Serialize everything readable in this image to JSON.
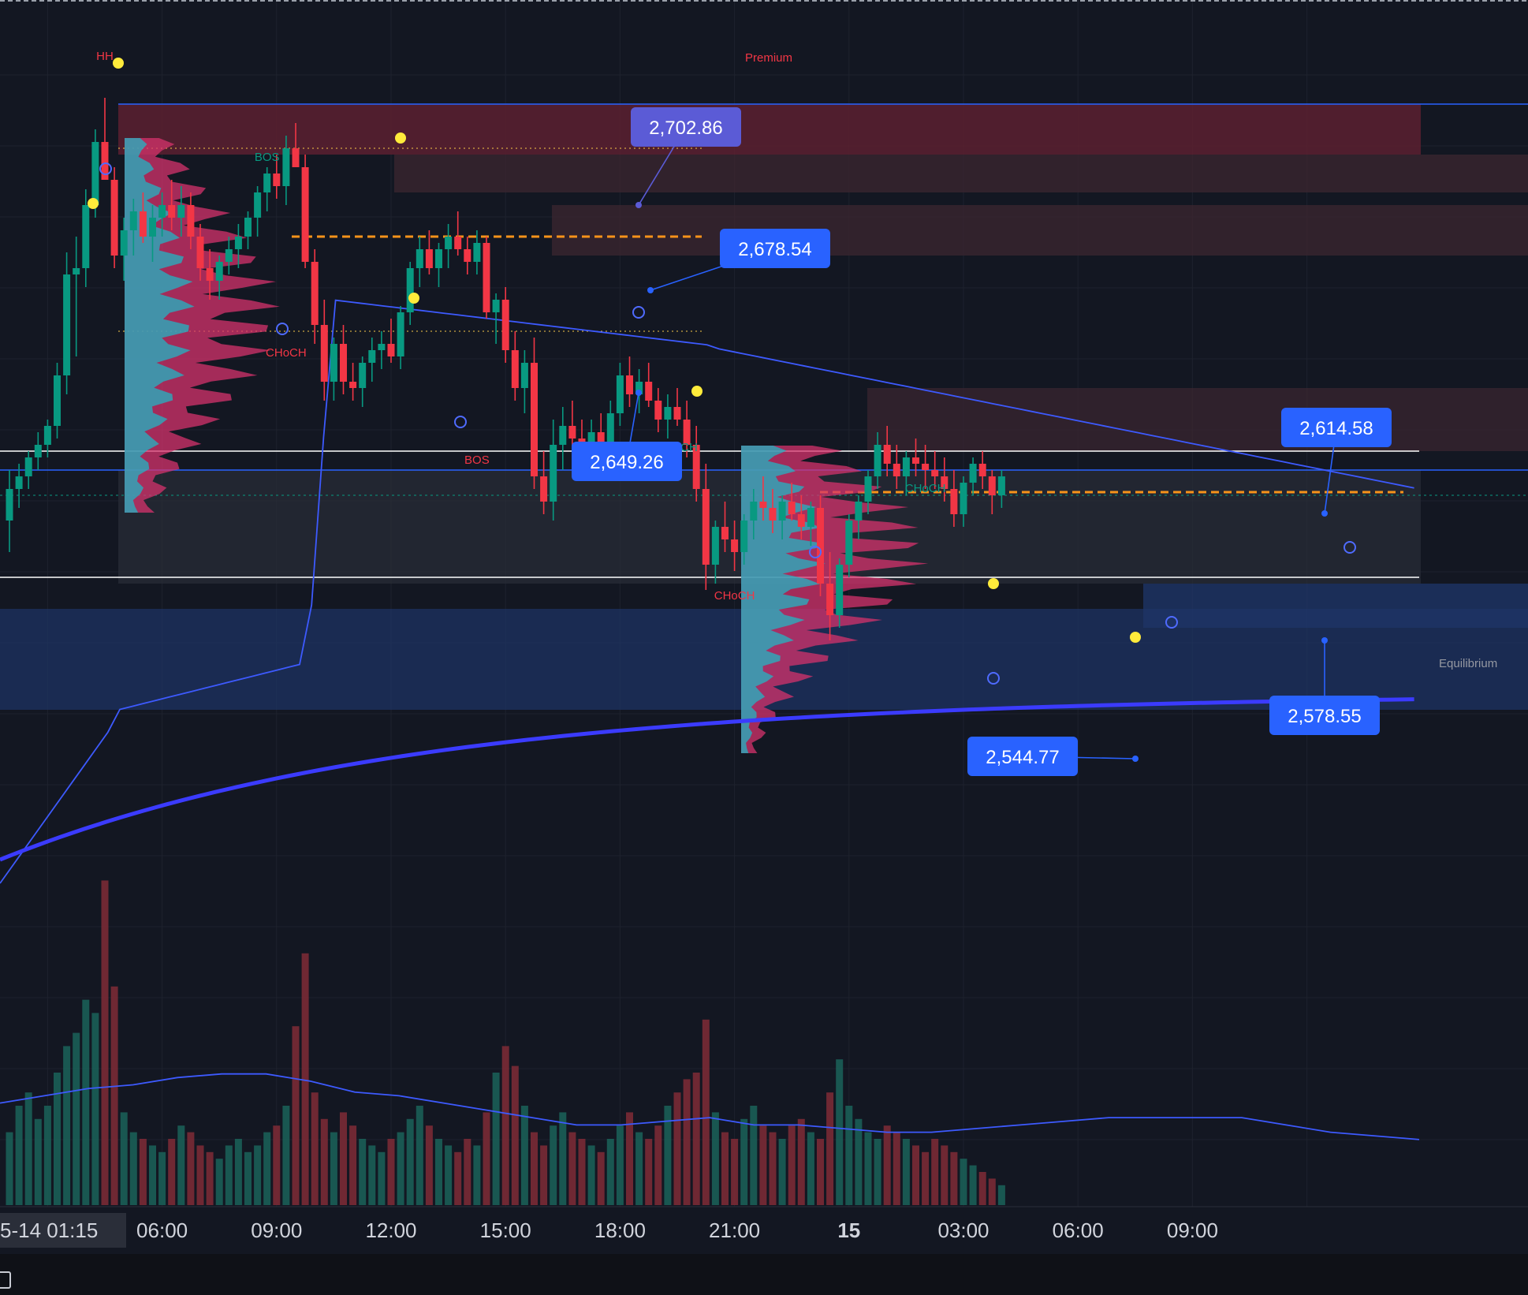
{
  "chart_data": {
    "type": "candlestick",
    "title": "",
    "xlabel": "",
    "ylabel": "",
    "x_ticks": [
      {
        "label": "5-14  01:15",
        "slot": -3,
        "bold": false,
        "boxed": true
      },
      {
        "label": "06:00",
        "slot": 16,
        "bold": false,
        "boxed": false
      },
      {
        "label": "09:00",
        "slot": 28,
        "bold": false,
        "boxed": false
      },
      {
        "label": "12:00",
        "slot": 40,
        "bold": false,
        "boxed": false
      },
      {
        "label": "15:00",
        "slot": 52,
        "bold": false,
        "boxed": false
      },
      {
        "label": "18:00",
        "slot": 64,
        "bold": false,
        "boxed": false
      },
      {
        "label": "21:00",
        "slot": 76,
        "bold": false,
        "boxed": false
      },
      {
        "label": "15",
        "slot": 88,
        "bold": true,
        "boxed": false
      },
      {
        "label": "03:00",
        "slot": 100,
        "bold": false,
        "boxed": false
      },
      {
        "label": "06:00",
        "slot": 112,
        "bold": false,
        "boxed": false
      },
      {
        "label": "09:00",
        "slot": 124,
        "bold": false,
        "boxed": false
      }
    ],
    "y_range": [
      2490,
      2740
    ],
    "candles_ohlc": [
      [
        2590,
        2606,
        2580,
        2600
      ],
      [
        2600,
        2608,
        2594,
        2604
      ],
      [
        2604,
        2612,
        2600,
        2610
      ],
      [
        2610,
        2618,
        2606,
        2614
      ],
      [
        2614,
        2622,
        2610,
        2620
      ],
      [
        2620,
        2640,
        2616,
        2636
      ],
      [
        2636,
        2675,
        2630,
        2668
      ],
      [
        2668,
        2680,
        2642,
        2670
      ],
      [
        2670,
        2695,
        2664,
        2690
      ],
      [
        2690,
        2714,
        2686,
        2710
      ],
      [
        2710,
        2724,
        2700,
        2698
      ],
      [
        2698,
        2702,
        2670,
        2674
      ],
      [
        2674,
        2686,
        2666,
        2682
      ],
      [
        2682,
        2692,
        2674,
        2688
      ],
      [
        2688,
        2694,
        2678,
        2680
      ],
      [
        2680,
        2690,
        2672,
        2686
      ],
      [
        2686,
        2694,
        2680,
        2690
      ],
      [
        2690,
        2698,
        2682,
        2686
      ],
      [
        2686,
        2696,
        2680,
        2690
      ],
      [
        2690,
        2694,
        2676,
        2680
      ],
      [
        2680,
        2684,
        2666,
        2670
      ],
      [
        2670,
        2676,
        2660,
        2666
      ],
      [
        2666,
        2674,
        2660,
        2672
      ],
      [
        2672,
        2680,
        2668,
        2676
      ],
      [
        2676,
        2684,
        2670,
        2680
      ],
      [
        2680,
        2688,
        2676,
        2686
      ],
      [
        2686,
        2696,
        2680,
        2694
      ],
      [
        2694,
        2702,
        2688,
        2700
      ],
      [
        2700,
        2706,
        2692,
        2696
      ],
      [
        2696,
        2712,
        2690,
        2708
      ],
      [
        2708,
        2716,
        2702,
        2702
      ],
      [
        2702,
        2706,
        2670,
        2672
      ],
      [
        2672,
        2676,
        2646,
        2652
      ],
      [
        2652,
        2660,
        2628,
        2634
      ],
      [
        2634,
        2648,
        2628,
        2646
      ],
      [
        2646,
        2652,
        2630,
        2634
      ],
      [
        2634,
        2640,
        2628,
        2632
      ],
      [
        2632,
        2642,
        2626,
        2640
      ],
      [
        2640,
        2648,
        2634,
        2644
      ],
      [
        2644,
        2650,
        2638,
        2646
      ],
      [
        2646,
        2654,
        2640,
        2642
      ],
      [
        2642,
        2658,
        2638,
        2656
      ],
      [
        2656,
        2672,
        2652,
        2670
      ],
      [
        2670,
        2680,
        2664,
        2676
      ],
      [
        2676,
        2682,
        2668,
        2670
      ],
      [
        2670,
        2678,
        2664,
        2676
      ],
      [
        2676,
        2684,
        2670,
        2680
      ],
      [
        2680,
        2688,
        2674,
        2676
      ],
      [
        2676,
        2680,
        2668,
        2672
      ],
      [
        2672,
        2682,
        2668,
        2678
      ],
      [
        2678,
        2680,
        2654,
        2656
      ],
      [
        2656,
        2662,
        2646,
        2660
      ],
      [
        2660,
        2664,
        2640,
        2644
      ],
      [
        2644,
        2650,
        2628,
        2632
      ],
      [
        2632,
        2644,
        2624,
        2640
      ],
      [
        2640,
        2648,
        2600,
        2604
      ],
      [
        2604,
        2612,
        2592,
        2596
      ],
      [
        2596,
        2622,
        2590,
        2614
      ],
      [
        2614,
        2626,
        2606,
        2620
      ],
      [
        2620,
        2628,
        2612,
        2616
      ],
      [
        2616,
        2622,
        2610,
        2614
      ],
      [
        2614,
        2622,
        2608,
        2618
      ],
      [
        2618,
        2624,
        2610,
        2612
      ],
      [
        2612,
        2628,
        2608,
        2624
      ],
      [
        2624,
        2640,
        2620,
        2636
      ],
      [
        2636,
        2642,
        2626,
        2630
      ],
      [
        2630,
        2638,
        2624,
        2634
      ],
      [
        2634,
        2640,
        2626,
        2628
      ],
      [
        2628,
        2632,
        2618,
        2622
      ],
      [
        2622,
        2630,
        2616,
        2626
      ],
      [
        2626,
        2632,
        2620,
        2622
      ],
      [
        2622,
        2628,
        2610,
        2614
      ],
      [
        2614,
        2620,
        2596,
        2600
      ],
      [
        2600,
        2608,
        2568,
        2576
      ],
      [
        2576,
        2590,
        2570,
        2588
      ],
      [
        2588,
        2596,
        2580,
        2584
      ],
      [
        2584,
        2590,
        2574,
        2580
      ],
      [
        2580,
        2592,
        2576,
        2590
      ],
      [
        2590,
        2600,
        2584,
        2596
      ],
      [
        2596,
        2604,
        2590,
        2594
      ],
      [
        2594,
        2600,
        2586,
        2590
      ],
      [
        2590,
        2598,
        2584,
        2596
      ],
      [
        2596,
        2602,
        2590,
        2592
      ],
      [
        2592,
        2598,
        2584,
        2588
      ],
      [
        2588,
        2596,
        2582,
        2594
      ],
      [
        2594,
        2598,
        2566,
        2570
      ],
      [
        2570,
        2580,
        2552,
        2560
      ],
      [
        2560,
        2578,
        2556,
        2576
      ],
      [
        2576,
        2592,
        2572,
        2590
      ],
      [
        2590,
        2598,
        2584,
        2596
      ],
      [
        2596,
        2606,
        2592,
        2604
      ],
      [
        2604,
        2618,
        2600,
        2614
      ],
      [
        2614,
        2620,
        2604,
        2608
      ],
      [
        2608,
        2614,
        2600,
        2604
      ],
      [
        2604,
        2612,
        2598,
        2610
      ],
      [
        2610,
        2616,
        2604,
        2608
      ],
      [
        2608,
        2614,
        2600,
        2606
      ],
      [
        2606,
        2612,
        2600,
        2604
      ],
      [
        2604,
        2610,
        2596,
        2600
      ],
      [
        2600,
        2606,
        2588,
        2592
      ],
      [
        2592,
        2604,
        2588,
        2602
      ],
      [
        2602,
        2610,
        2598,
        2608
      ],
      [
        2608,
        2612,
        2600,
        2604
      ],
      [
        2604,
        2606,
        2592,
        2598
      ],
      [
        2598,
        2606,
        2594,
        2604
      ]
    ],
    "volume_rel": [
      0.22,
      0.3,
      0.34,
      0.26,
      0.3,
      0.4,
      0.48,
      0.52,
      0.62,
      0.58,
      0.98,
      0.66,
      0.28,
      0.22,
      0.2,
      0.18,
      0.16,
      0.2,
      0.24,
      0.22,
      0.18,
      0.16,
      0.14,
      0.18,
      0.2,
      0.16,
      0.18,
      0.22,
      0.24,
      0.3,
      0.54,
      0.76,
      0.34,
      0.26,
      0.22,
      0.28,
      0.24,
      0.2,
      0.18,
      0.16,
      0.2,
      0.22,
      0.26,
      0.3,
      0.24,
      0.2,
      0.18,
      0.16,
      0.2,
      0.18,
      0.28,
      0.4,
      0.48,
      0.42,
      0.3,
      0.22,
      0.18,
      0.24,
      0.28,
      0.22,
      0.2,
      0.18,
      0.16,
      0.2,
      0.24,
      0.28,
      0.22,
      0.2,
      0.24,
      0.3,
      0.34,
      0.38,
      0.4,
      0.56,
      0.28,
      0.22,
      0.2,
      0.26,
      0.3,
      0.24,
      0.22,
      0.2,
      0.24,
      0.26,
      0.22,
      0.2,
      0.34,
      0.44,
      0.3,
      0.26,
      0.22,
      0.2,
      0.24,
      0.22,
      0.2,
      0.18,
      0.16,
      0.2,
      0.18,
      0.16,
      0.14,
      0.12,
      0.1,
      0.08,
      0.06
    ],
    "volume_ma_rel": [
      0.28,
      0.3,
      0.32,
      0.33,
      0.35,
      0.36,
      0.36,
      0.34,
      0.31,
      0.3,
      0.28,
      0.26,
      0.24,
      0.22,
      0.22,
      0.23,
      0.24,
      0.22,
      0.22,
      0.21,
      0.2,
      0.2,
      0.21,
      0.22,
      0.23,
      0.24,
      0.24,
      0.24,
      0.24,
      0.22,
      0.2,
      0.19,
      0.18
    ],
    "annotations": {
      "structure_labels": [
        {
          "text": "HH",
          "slot": 10,
          "price": 2736,
          "color": "#f23645"
        },
        {
          "text": "BOS",
          "slot": 27,
          "price": 2704,
          "color": "#089981"
        },
        {
          "text": "CHoCH",
          "slot": 29,
          "price": 2642,
          "color": "#f23645"
        },
        {
          "text": "BOS",
          "slot": 49,
          "price": 2608,
          "color": "#f23645"
        },
        {
          "text": "CHoCH",
          "slot": 70,
          "price": 2612,
          "color": "#089981"
        },
        {
          "text": "CHoCH",
          "slot": 96,
          "price": 2599,
          "color": "#089981"
        },
        {
          "text": "CHoCH",
          "slot": 76,
          "price": 2565,
          "color": "#f23645"
        }
      ],
      "zone_labels": [
        {
          "text": "Premium",
          "color": "#f23645"
        },
        {
          "text": "Equilibrium",
          "color": "#9598a1"
        }
      ],
      "price_callouts": [
        {
          "text": "2,702.86",
          "color": "#5b5bd6"
        },
        {
          "text": "2,678.54",
          "color": "#2962ff"
        },
        {
          "text": "2,649.26",
          "color": "#2962ff"
        },
        {
          "text": "2,614.58",
          "color": "#2962ff"
        },
        {
          "text": "2,578.55",
          "color": "#2962ff"
        },
        {
          "text": "2,544.77",
          "color": "#2962ff"
        }
      ]
    },
    "colors": {
      "background": "#131722",
      "bull": "#089981",
      "bear": "#f23645",
      "vwap_thin": "#3d5afe",
      "vwap_thick": "#3b3bff",
      "premium_zone": "#5c2030",
      "discount_zone": "#1e3466",
      "grid": "#1e222d",
      "axis_text": "#d1d4dc"
    },
    "grid": true
  }
}
